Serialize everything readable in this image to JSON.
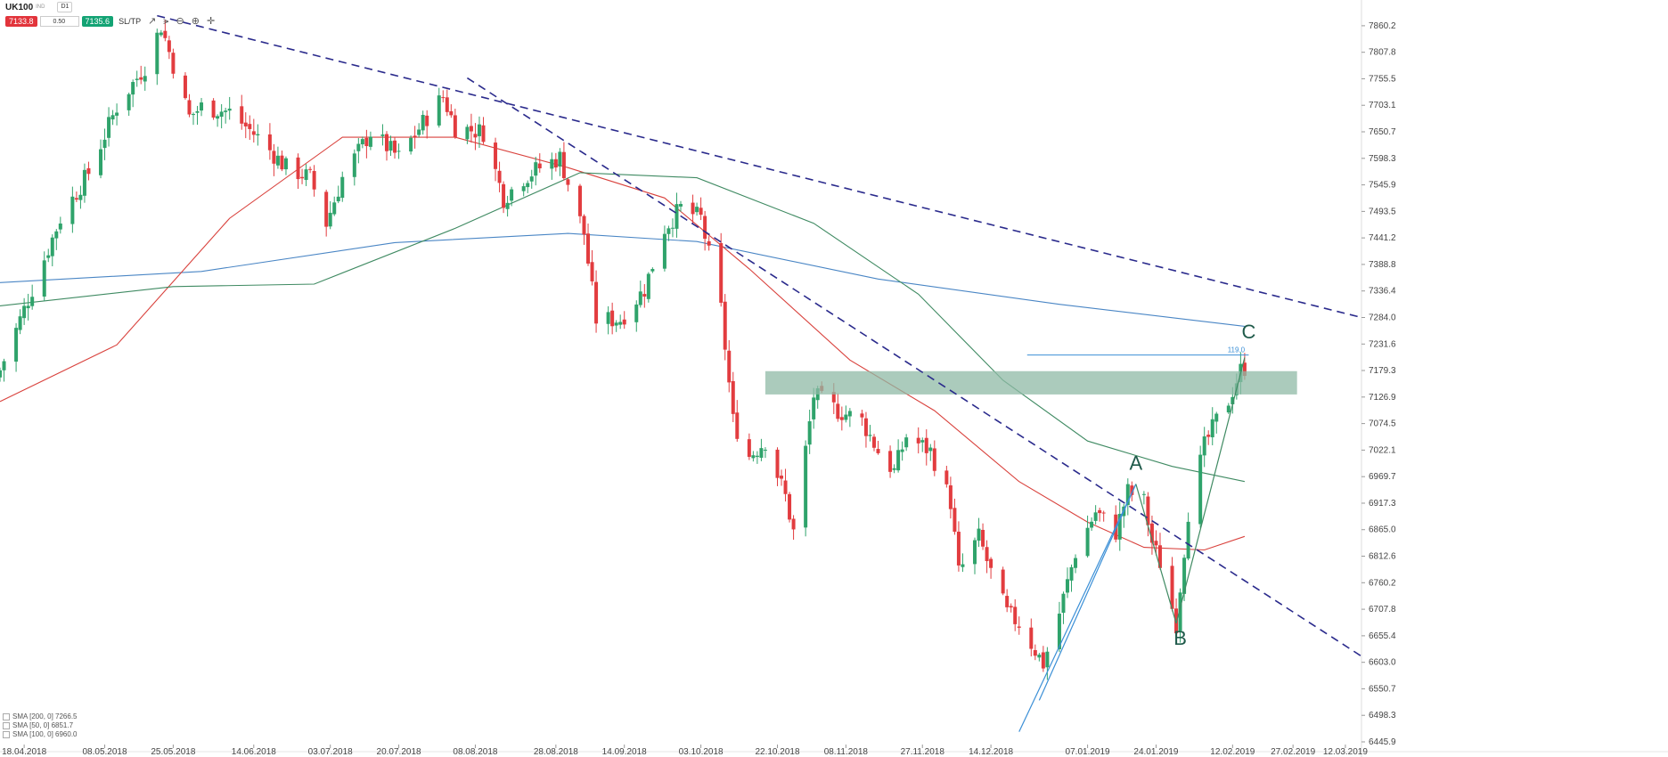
{
  "toolbar": {
    "symbol": "UK100",
    "symbol_sup": "IND",
    "timeframe": "D1",
    "sell_price": "7133.8",
    "lot": "0.50",
    "buy_price": "7135.6",
    "sltp_label": "SL/TP",
    "icons": [
      "line-chart-icon",
      "indicators-icon",
      "zoom-out-icon",
      "zoom-in-icon",
      "crosshair-icon"
    ]
  },
  "indicator_legend": [
    {
      "label": "SMA [200, 0] 7266.5",
      "color": "#4a86c5"
    },
    {
      "label": "SMA [50, 0] 6851.7",
      "color": "#d9423d"
    },
    {
      "label": "SMA [100, 0] 6960.0",
      "color": "#3f8a62"
    }
  ],
  "colors": {
    "bull": "#2fa36b",
    "bear": "#e23c3f",
    "sma200": "#4a86c5",
    "sma50": "#d9423d",
    "sma100": "#3f8a62",
    "trend": "#2a2a8c",
    "zone": "#8fb9a6",
    "pattern": "#3b8fd6"
  },
  "chart_data": {
    "type": "candlestick",
    "symbol": "UK100",
    "timeframe": "D1",
    "x_range": [
      "2018-04-12",
      "2019-03-16"
    ],
    "ylim": [
      6445.9,
      7886.4
    ],
    "y_ticks": [
      "7860.2",
      "7807.8",
      "7755.5",
      "7703.1",
      "7650.7",
      "7598.3",
      "7545.9",
      "7493.5",
      "7441.2",
      "7388.8",
      "7336.4",
      "7284.0",
      "7231.6",
      "7179.3",
      "7126.9",
      "7074.5",
      "7022.1",
      "6969.7",
      "6917.3",
      "6865.0",
      "6812.6",
      "6760.2",
      "6707.8",
      "6655.4",
      "6603.0",
      "6550.7",
      "6498.3",
      "6445.9"
    ],
    "x_ticks": [
      {
        "date": "2018-04-18",
        "label": "18.04.2018"
      },
      {
        "date": "2018-05-08",
        "label": "08.05.2018"
      },
      {
        "date": "2018-05-25",
        "label": "25.05.2018"
      },
      {
        "date": "2018-06-14",
        "label": "14.06.2018"
      },
      {
        "date": "2018-07-03",
        "label": "03.07.2018"
      },
      {
        "date": "2018-07-20",
        "label": "20.07.2018"
      },
      {
        "date": "2018-08-08",
        "label": "08.08.2018"
      },
      {
        "date": "2018-08-28",
        "label": "28.08.2018"
      },
      {
        "date": "2018-09-14",
        "label": "14.09.2018"
      },
      {
        "date": "2018-10-03",
        "label": "03.10.2018"
      },
      {
        "date": "2018-10-22",
        "label": "22.10.2018"
      },
      {
        "date": "2018-11-08",
        "label": "08.11.2018"
      },
      {
        "date": "2018-11-27",
        "label": "27.11.2018"
      },
      {
        "date": "2018-12-14",
        "label": "14.12.2018"
      },
      {
        "date": "2019-01-07",
        "label": "07.01.2019"
      },
      {
        "date": "2019-01-24",
        "label": "24.01.2019"
      },
      {
        "date": "2019-02-12",
        "label": "12.02.2019"
      },
      {
        "date": "2019-02-27",
        "label": "27.02.2019"
      },
      {
        "date": "2019-03-12",
        "label": "12.03.2019"
      }
    ],
    "close_anchors": [
      [
        "2018-04-12",
        7180
      ],
      [
        "2018-04-20",
        7340
      ],
      [
        "2018-04-27",
        7480
      ],
      [
        "2018-05-04",
        7570
      ],
      [
        "2018-05-11",
        7700
      ],
      [
        "2018-05-18",
        7780
      ],
      [
        "2018-05-22",
        7860
      ],
      [
        "2018-05-29",
        7680
      ],
      [
        "2018-06-01",
        7700
      ],
      [
        "2018-06-08",
        7690
      ],
      [
        "2018-06-15",
        7640
      ],
      [
        "2018-06-22",
        7580
      ],
      [
        "2018-06-28",
        7560
      ],
      [
        "2018-07-02",
        7470
      ],
      [
        "2018-07-06",
        7560
      ],
      [
        "2018-07-13",
        7650
      ],
      [
        "2018-07-20",
        7600
      ],
      [
        "2018-07-27",
        7680
      ],
      [
        "2018-07-31",
        7720
      ],
      [
        "2018-08-03",
        7660
      ],
      [
        "2018-08-10",
        7650
      ],
      [
        "2018-08-15",
        7520
      ],
      [
        "2018-08-20",
        7560
      ],
      [
        "2018-08-24",
        7580
      ],
      [
        "2018-08-29",
        7600
      ],
      [
        "2018-09-04",
        7450
      ],
      [
        "2018-09-07",
        7280
      ],
      [
        "2018-09-13",
        7280
      ],
      [
        "2018-09-19",
        7340
      ],
      [
        "2018-09-24",
        7460
      ],
      [
        "2018-09-28",
        7500
      ],
      [
        "2018-10-03",
        7480
      ],
      [
        "2018-10-08",
        7300
      ],
      [
        "2018-10-11",
        7080
      ],
      [
        "2018-10-15",
        7010
      ],
      [
        "2018-10-19",
        7040
      ],
      [
        "2018-10-24",
        6930
      ],
      [
        "2018-10-26",
        6860
      ],
      [
        "2018-10-31",
        7130
      ],
      [
        "2018-11-06",
        7100
      ],
      [
        "2018-11-12",
        7080
      ],
      [
        "2018-11-16",
        7020
      ],
      [
        "2018-11-20",
        6980
      ],
      [
        "2018-11-23",
        7050
      ],
      [
        "2018-11-29",
        7020
      ],
      [
        "2018-12-04",
        6920
      ],
      [
        "2018-12-06",
        6780
      ],
      [
        "2018-12-11",
        6850
      ],
      [
        "2018-12-14",
        6780
      ],
      [
        "2018-12-18",
        6700
      ],
      [
        "2018-12-21",
        6680
      ],
      [
        "2018-12-27",
        6600
      ],
      [
        "2018-12-31",
        6700
      ],
      [
        "2019-01-04",
        6820
      ],
      [
        "2019-01-09",
        6900
      ],
      [
        "2019-01-14",
        6860
      ],
      [
        "2019-01-17",
        6940
      ],
      [
        "2019-01-21",
        6920
      ],
      [
        "2019-01-23",
        6840
      ],
      [
        "2019-01-25",
        6800
      ],
      [
        "2019-01-29",
        6680
      ],
      [
        "2019-02-01",
        6900
      ],
      [
        "2019-02-05",
        7030
      ],
      [
        "2019-02-08",
        7080
      ],
      [
        "2019-02-11",
        7120
      ],
      [
        "2019-02-14",
        7180
      ],
      [
        "2019-02-15",
        7185
      ]
    ],
    "series": [
      {
        "name": "SMA [200, 0] 7266.5",
        "type": "line",
        "color": "#4a86c5",
        "points": [
          [
            "2018-04-12",
            7353
          ],
          [
            "2018-06-01",
            7375
          ],
          [
            "2018-07-19",
            7432
          ],
          [
            "2018-08-31",
            7450
          ],
          [
            "2018-10-02",
            7434
          ],
          [
            "2018-11-16",
            7360
          ],
          [
            "2018-12-31",
            7310
          ],
          [
            "2019-02-15",
            7266.5
          ]
        ]
      },
      {
        "name": "SMA [50, 0] 6851.7",
        "type": "line",
        "color": "#d9423d",
        "points": [
          [
            "2018-04-12",
            7118
          ],
          [
            "2018-05-11",
            7230
          ],
          [
            "2018-06-08",
            7480
          ],
          [
            "2018-07-06",
            7640
          ],
          [
            "2018-08-03",
            7640
          ],
          [
            "2018-08-31",
            7580
          ],
          [
            "2018-09-24",
            7520
          ],
          [
            "2018-10-15",
            7380
          ],
          [
            "2018-11-09",
            7200
          ],
          [
            "2018-11-30",
            7100
          ],
          [
            "2018-12-21",
            6960
          ],
          [
            "2019-01-07",
            6880
          ],
          [
            "2019-01-21",
            6830
          ],
          [
            "2019-02-05",
            6825
          ],
          [
            "2019-02-15",
            6851.7
          ]
        ]
      },
      {
        "name": "SMA [100, 0] 6960.0",
        "type": "line",
        "color": "#3f8a62",
        "points": [
          [
            "2018-04-12",
            7307
          ],
          [
            "2018-05-25",
            7345
          ],
          [
            "2018-06-29",
            7350
          ],
          [
            "2018-08-03",
            7460
          ],
          [
            "2018-09-03",
            7570
          ],
          [
            "2018-10-02",
            7560
          ],
          [
            "2018-10-31",
            7470
          ],
          [
            "2018-11-26",
            7330
          ],
          [
            "2018-12-17",
            7160
          ],
          [
            "2019-01-07",
            7040
          ],
          [
            "2019-01-28",
            6990
          ],
          [
            "2019-02-15",
            6960
          ]
        ]
      }
    ],
    "trendlines": [
      {
        "style": "dashed",
        "color": "#2a2a8c",
        "from": [
          "2018-05-21",
          7880
        ],
        "to": [
          "2019-03-16",
          7284
        ]
      },
      {
        "style": "dashed",
        "color": "#2a2a8c",
        "from": [
          "2018-08-06",
          7757
        ],
        "to": [
          "2019-03-16",
          6615
        ]
      }
    ],
    "zone": {
      "from": "2018-10-19",
      "to": "2019-02-28",
      "y_low": 7132,
      "y_high": 7178,
      "color": "#8fb9a6"
    },
    "horizontal_line": {
      "from": "2018-12-23",
      "to": "2019-02-16",
      "y": 7210,
      "label": "119.0"
    },
    "pattern_lines": [
      [
        [
          "2018-12-21",
          6466
        ],
        [
          "2019-01-19",
          6955
        ]
      ],
      [
        [
          "2018-12-26",
          6528
        ],
        [
          "2019-01-19",
          6955
        ]
      ],
      [
        [
          "2019-01-19",
          6955
        ],
        [
          "2019-01-29",
          6680
        ]
      ],
      [
        [
          "2019-01-29",
          6680
        ],
        [
          "2019-02-15",
          7205
        ]
      ]
    ],
    "point_labels": [
      {
        "text": "A",
        "at": [
          "2019-01-19",
          6983
        ]
      },
      {
        "text": "B",
        "at": [
          "2019-01-30",
          6638
        ]
      },
      {
        "text": "C",
        "at": [
          "2019-02-16",
          7243
        ]
      }
    ]
  }
}
